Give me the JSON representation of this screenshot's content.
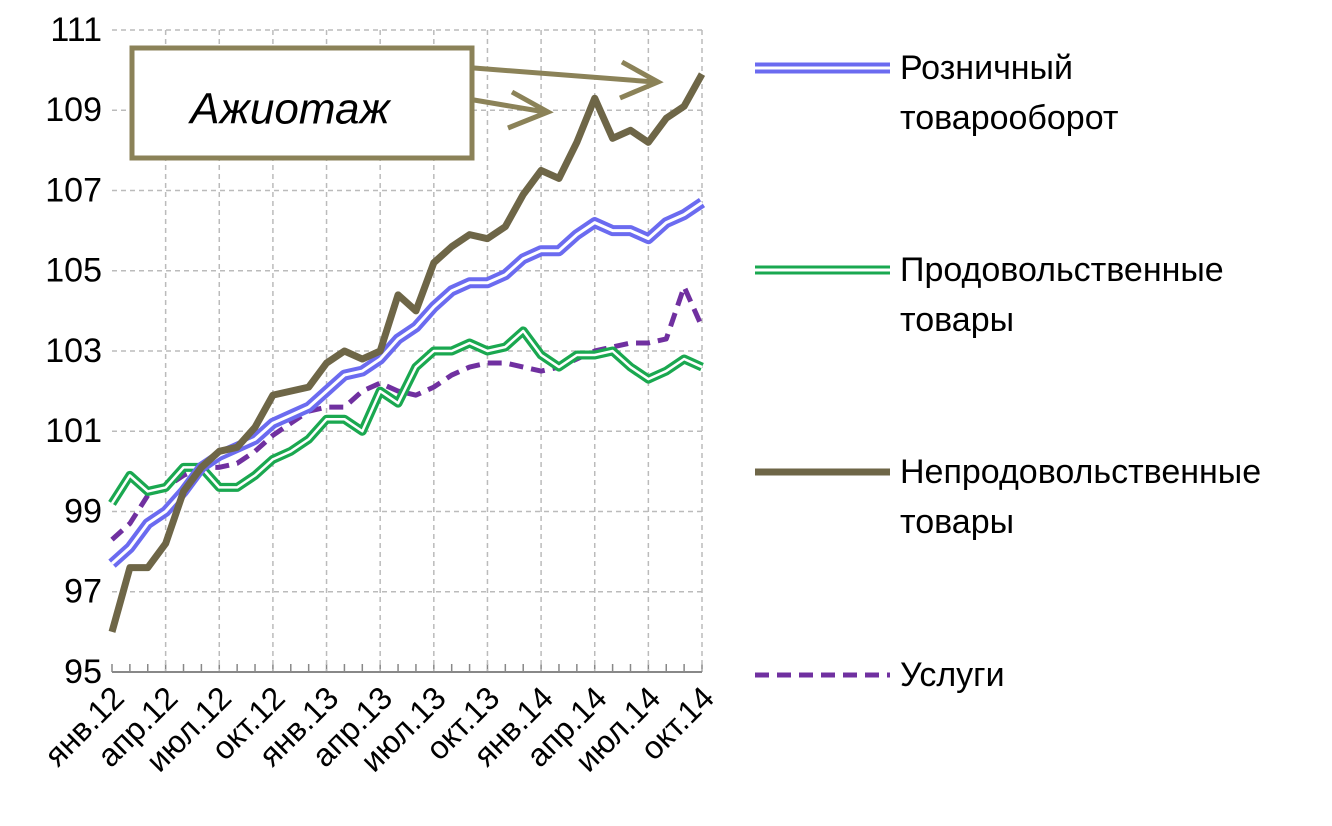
{
  "chart_data": {
    "type": "line",
    "categories": [
      "янв.12",
      null,
      null,
      "апр.12",
      null,
      null,
      "июл.12",
      null,
      null,
      "окт.12",
      null,
      null,
      "янв.13",
      null,
      null,
      "апр.13",
      null,
      null,
      "июл.13",
      null,
      null,
      "окт.13",
      null,
      null,
      "янв.14",
      null,
      null,
      "апр.14",
      null,
      null,
      "июл.14",
      null,
      null,
      "окт.14"
    ],
    "series": [
      {
        "name": "Розничный товарооборот",
        "color": "#6b6bf0",
        "values": [
          97.7,
          98.1,
          98.7,
          99.0,
          99.5,
          100.1,
          100.4,
          100.6,
          100.8,
          101.2,
          101.4,
          101.6,
          102.0,
          102.4,
          102.5,
          102.8,
          103.3,
          103.6,
          104.1,
          104.5,
          104.7,
          104.7,
          104.9,
          105.3,
          105.5,
          105.5,
          105.9,
          106.2,
          106.0,
          106.0,
          105.8,
          106.2,
          106.4,
          106.7
        ]
      },
      {
        "name": "Продовольственные товары",
        "color": "#1aa850",
        "values": [
          99.2,
          99.9,
          99.5,
          99.6,
          100.1,
          100.1,
          99.6,
          99.6,
          99.9,
          100.3,
          100.5,
          100.8,
          101.3,
          101.3,
          101.0,
          102.0,
          101.7,
          102.6,
          103.0,
          103.0,
          103.2,
          103.0,
          103.1,
          103.5,
          102.9,
          102.6,
          102.9,
          102.9,
          103.0,
          102.6,
          102.3,
          102.5,
          102.8,
          102.6
        ]
      },
      {
        "name": "Непродовольственные товары",
        "color": "#6e6647",
        "values": [
          96.0,
          97.6,
          97.6,
          98.2,
          99.5,
          100.1,
          100.5,
          100.6,
          101.1,
          101.9,
          102.0,
          102.1,
          102.7,
          103.0,
          102.8,
          103.0,
          104.4,
          104.0,
          105.2,
          105.6,
          105.9,
          105.8,
          106.1,
          106.9,
          107.5,
          107.3,
          108.2,
          109.3,
          108.3,
          108.5,
          108.2,
          108.8,
          109.1,
          109.9
        ]
      },
      {
        "name": "Услуги",
        "color": "#7030a0",
        "dashed": true,
        "values": [
          98.3,
          98.7,
          99.4,
          99.6,
          99.9,
          100.1,
          100.1,
          100.2,
          100.5,
          100.9,
          101.2,
          101.5,
          101.6,
          101.6,
          102.0,
          102.2,
          102.0,
          101.9,
          102.1,
          102.4,
          102.6,
          102.7,
          102.7,
          102.6,
          102.5,
          102.6,
          102.8,
          103.0,
          103.1,
          103.2,
          103.2,
          103.3,
          104.6,
          103.6
        ]
      }
    ],
    "ylim": [
      95,
      111
    ],
    "yticks": [
      95,
      97,
      99,
      101,
      103,
      105,
      107,
      109,
      111
    ],
    "grid": true,
    "annotation": "Ажиотаж"
  }
}
